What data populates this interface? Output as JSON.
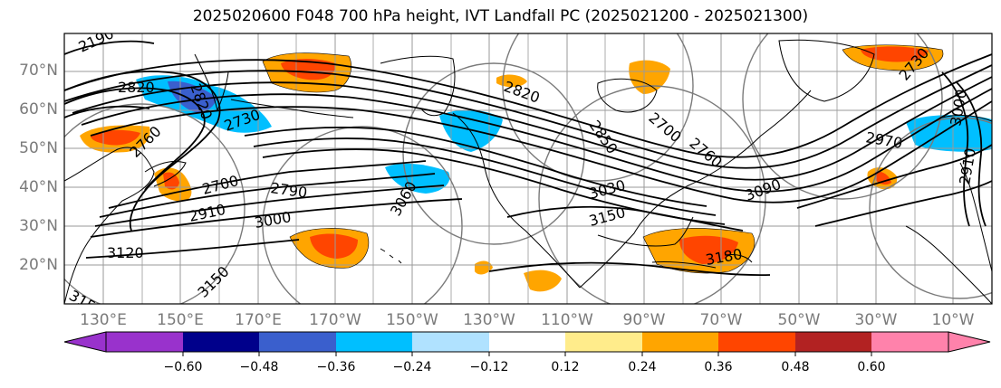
{
  "title": "2025020600 F048 700 hPa height, IVT Landfall PC (2025021200 - 2025021300)",
  "lat_labels": [
    "70°N",
    "60°N",
    "50°N",
    "40°N",
    "30°N",
    "20°N"
  ],
  "lon_labels": [
    "130°E",
    "150°E",
    "170°E",
    "170°W",
    "150°W",
    "130°W",
    "110°W",
    "90°W",
    "70°W",
    "50°W",
    "30°W",
    "10°W"
  ],
  "colorbar": {
    "ticks": [
      "−0.60",
      "−0.48",
      "−0.36",
      "−0.24",
      "−0.12",
      "0.12",
      "0.24",
      "0.36",
      "0.48",
      "0.60"
    ],
    "colors": [
      "#9932cc",
      "#00008b",
      "#3a5fcd",
      "#00bfff",
      "#b0e2ff",
      "#ffffff",
      "#ffec8b",
      "#ffa500",
      "#ff4500",
      "#b22222",
      "#ff82ab"
    ]
  },
  "contour_labels": [
    "2190",
    "2820",
    "2820",
    "2730",
    "2760",
    "2700",
    "2790",
    "2910",
    "3000",
    "3120",
    "3150",
    "3150",
    "3060",
    "3030",
    "3150",
    "2820",
    "2700",
    "2850",
    "2760",
    "3090",
    "3180",
    "2970",
    "2730",
    "3000",
    "2910"
  ],
  "filled_level_colors": {
    "positive_low": "#ffa500",
    "positive_mid": "#ff4500",
    "positive_high": "#b22222",
    "negative_low": "#00bfff",
    "negative_mid": "#3a5fcd"
  }
}
